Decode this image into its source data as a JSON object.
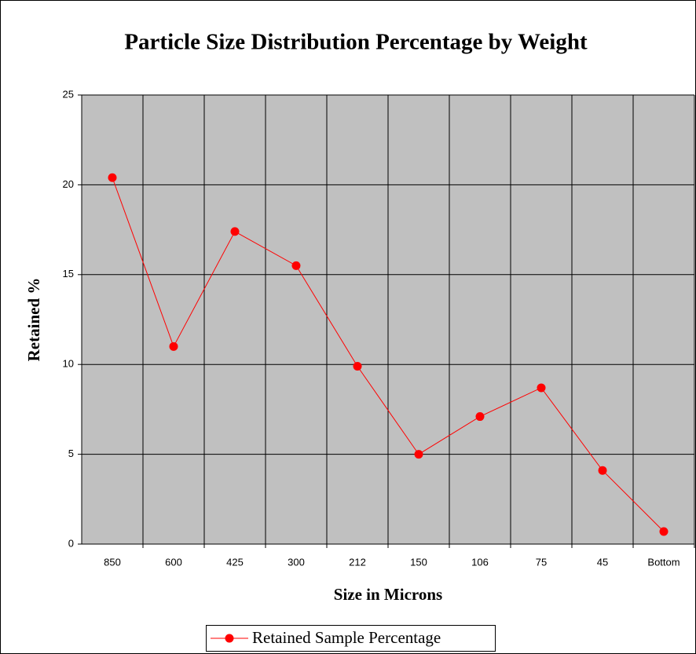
{
  "chart_data": {
    "type": "line",
    "title": "Particle Size Distribution Percentage by Weight",
    "x_label": "Size in Microns",
    "y_label": "Retained %",
    "categories": [
      "850",
      "600",
      "425",
      "300",
      "212",
      "150",
      "106",
      "75",
      "45",
      "Bottom"
    ],
    "series": [
      {
        "name": "Retained Sample Percentage",
        "color": "#ff0000",
        "values": [
          20.4,
          11.0,
          17.4,
          15.5,
          9.9,
          5.0,
          7.1,
          8.7,
          4.1,
          0.7
        ]
      }
    ],
    "ylim": [
      0,
      25
    ],
    "yticks": [
      0,
      5,
      10,
      15,
      20,
      25
    ],
    "grid": true,
    "legend": "bottom"
  }
}
